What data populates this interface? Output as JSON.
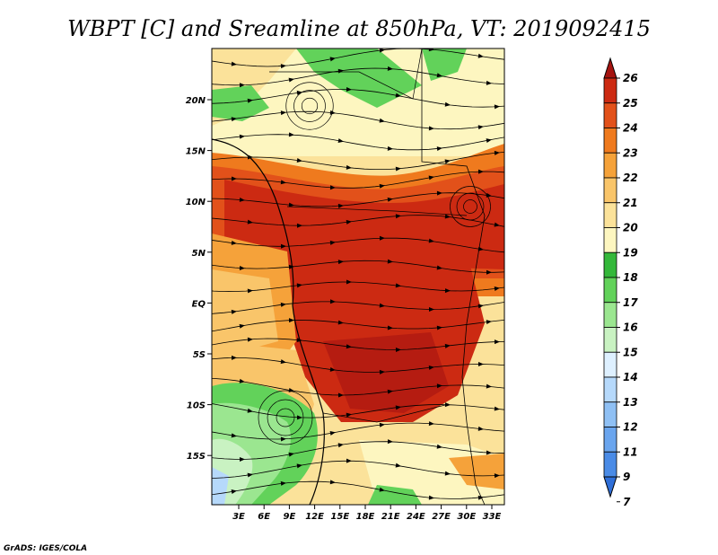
{
  "title": "WBPT [C] and Sreamline at 850hPa, VT: 2019092415",
  "credit": "GrADS: IGES/COLA",
  "map": {
    "lon_labels": [
      "3E",
      "6E",
      "9E",
      "12E",
      "15E",
      "18E",
      "21E",
      "24E",
      "27E",
      "30E",
      "33E"
    ],
    "lat_labels": [
      "20N",
      "15N",
      "10N",
      "5N",
      "EQ",
      "5S",
      "10S",
      "15S"
    ]
  },
  "colorbar": {
    "levels": [
      "7",
      "9",
      "11",
      "12",
      "13",
      "14",
      "15",
      "16",
      "17",
      "18",
      "19",
      "20",
      "21",
      "22",
      "23",
      "24",
      "25",
      "26"
    ],
    "colors": [
      "#2f6fd8",
      "#4a8be6",
      "#6aa5ee",
      "#8fc0f4",
      "#b6d9fb",
      "#def0ff",
      "#c9f2c2",
      "#9be690",
      "#62d25a",
      "#34b83a",
      "#fdf6c0",
      "#fbe29a",
      "#f9c56a",
      "#f5a23a",
      "#ef7a1e",
      "#e2511a",
      "#cc2a12",
      "#a51410"
    ]
  }
}
